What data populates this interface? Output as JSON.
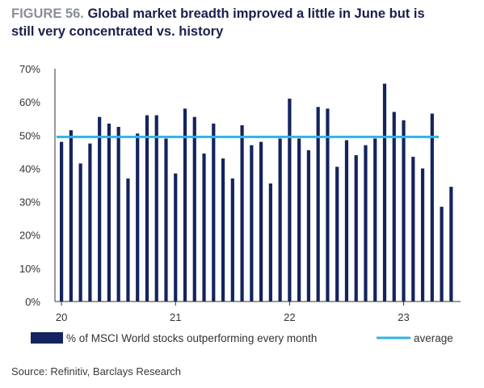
{
  "title": {
    "figure_label": "FIGURE 56.",
    "line1": "Global market breadth improved a little in June but is",
    "line2": "still very concentrated vs. history"
  },
  "source": "Source: Refinitiv, Barclays Research",
  "colors": {
    "bar": "#13245e",
    "average": "#2fb3e6",
    "axis": "#333333",
    "text": "#333333"
  },
  "chart_data": {
    "type": "bar",
    "y_tick_labels": [
      "0%",
      "10%",
      "20%",
      "30%",
      "40%",
      "50%",
      "60%",
      "70%"
    ],
    "ylim": [
      0,
      70
    ],
    "x_tick_labels": [
      {
        "label": "20",
        "index": 0
      },
      {
        "label": "21",
        "index": 12
      },
      {
        "label": "22",
        "index": 24
      },
      {
        "label": "23",
        "index": 36
      }
    ],
    "series": [
      {
        "name": "% of MSCI World stocks outperforming every month",
        "type": "bar",
        "values": [
          48,
          51.5,
          41.5,
          47.5,
          55.5,
          53.5,
          52.5,
          37,
          50.5,
          56,
          56,
          49,
          38.5,
          58,
          55.5,
          44.5,
          53.5,
          43,
          37,
          53,
          47,
          48,
          35.5,
          49,
          61,
          49,
          45.5,
          58.5,
          58,
          40.5,
          48.5,
          44,
          47,
          49,
          65.5,
          57,
          54.5,
          43.5,
          40,
          56.5,
          28.5,
          34.5
        ]
      },
      {
        "name": "average",
        "type": "line",
        "value": 49.5
      }
    ],
    "legend": [
      "% of MSCI World stocks outperforming every month",
      "average"
    ],
    "legend_position": "bottom",
    "grid": false
  }
}
